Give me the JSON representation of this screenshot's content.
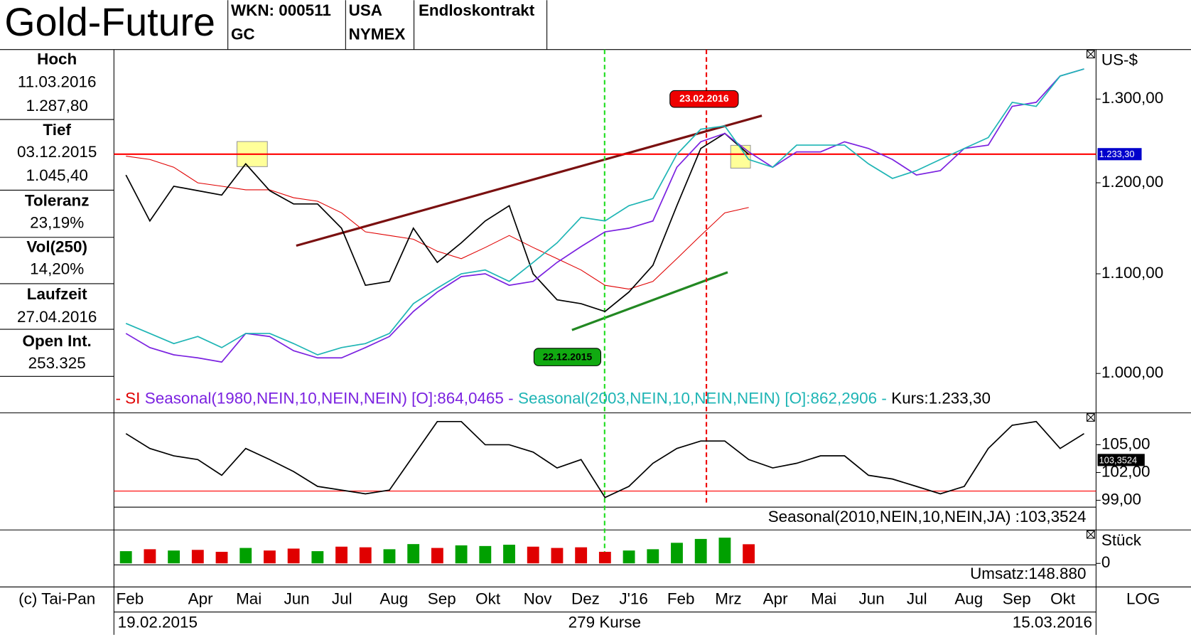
{
  "header": {
    "title": "Gold-Future",
    "wkn": "WKN: 000511",
    "symbol": "GC",
    "country": "USA",
    "exchange": "NYMEX",
    "contract": "Endloskontrakt"
  },
  "sidebar": [
    {
      "label": "Hoch",
      "lines": [
        "11.03.2016",
        "1.287,80"
      ]
    },
    {
      "label": "Tief",
      "lines": [
        "03.12.2015",
        "1.045,40"
      ]
    },
    {
      "label": "Toleranz",
      "lines": [
        "23,19%"
      ]
    },
    {
      "label": "Vol(250)",
      "lines": [
        "14,20%"
      ]
    },
    {
      "label": "Laufzeit",
      "lines": [
        "27.04.2016"
      ]
    },
    {
      "label": "Open Int.",
      "lines": [
        "253.325"
      ]
    }
  ],
  "footer": {
    "copyright": "(c) Tai-Pan",
    "scale": "LOG",
    "start": "19.02.2015",
    "count": "279 Kurse",
    "end": "15.03.2016"
  },
  "chart_data": [
    {
      "type": "line",
      "y_label": "US-$",
      "log_scale": true,
      "categories": [
        "Feb",
        null,
        null,
        "Apr",
        null,
        "Mai",
        null,
        "Jun",
        null,
        "Jul",
        null,
        "Aug",
        null,
        "Sep",
        null,
        "Okt",
        null,
        "Nov",
        null,
        "Dez",
        null,
        "J'16",
        null,
        "Feb",
        null,
        "Mrz",
        null,
        "Apr",
        null,
        "Mai",
        null,
        "Jun",
        null,
        "Jul",
        null,
        "Aug",
        null,
        "Sep",
        null,
        "Okt",
        null
      ],
      "ylim": [
        963,
        1363
      ],
      "yticks": [
        {
          "value": 1000,
          "label": "1.000,00"
        },
        {
          "value": 1100,
          "label": "1.100,00"
        },
        {
          "value": 1200,
          "label": "1.200,00"
        },
        {
          "value": 1300,
          "label": "1.300,00"
        }
      ],
      "series": [
        {
          "name": "- SI",
          "color": "#e00000",
          "values": [
            1231,
            1227,
            1218,
            1200,
            1196,
            1192,
            1192,
            1183,
            1179,
            1166,
            1145,
            1141,
            1137,
            1124,
            1116,
            1128,
            1141,
            1128,
            1116,
            1104,
            1088,
            1084,
            1092,
            1116,
            1141,
            1166,
            1172,
            null,
            null,
            null,
            null,
            null,
            null,
            null,
            null,
            null,
            null,
            null,
            null,
            null,
            null
          ]
        },
        {
          "color": "#000000",
          "values": [
            1209,
            1157,
            1196,
            1191,
            1186,
            1222,
            1191,
            1176,
            1176,
            1149,
            1088,
            1092,
            1149,
            1112,
            1133,
            1157,
            1174,
            1100,
            1073,
            1069,
            1061,
            1081,
            1109,
            1174,
            1240,
            1258,
            1233,
            null,
            null,
            null,
            null,
            null,
            null,
            null,
            null,
            null,
            null,
            null,
            null,
            null,
            null
          ]
        },
        {
          "name": "Seasonal(1980,NEIN,10,NEIN,NEIN) [O]:864,0465 -",
          "color": "#7b22e0",
          "values": [
            1039,
            1025,
            1018,
            1015,
            1011,
            1039,
            1036,
            1022,
            1015,
            1015,
            1025,
            1036,
            1061,
            1081,
            1097,
            1100,
            1088,
            1092,
            1112,
            1129,
            1145,
            1149,
            1157,
            1218,
            1248,
            1258,
            1236,
            1218,
            1236,
            1236,
            1248,
            1240,
            1227,
            1209,
            1214,
            1240,
            1244,
            1291,
            1296,
            1329,
            1338
          ]
        },
        {
          "name": "Seasonal(2003,NEIN,10,NEIN,NEIN) [O]:862,2906 -",
          "color": "#1fb5b5",
          "values": [
            1049,
            1039,
            1029,
            1036,
            1025,
            1039,
            1039,
            1029,
            1018,
            1025,
            1029,
            1039,
            1069,
            1085,
            1100,
            1104,
            1092,
            1112,
            1133,
            1161,
            1157,
            1174,
            1182,
            1233,
            1263,
            1267,
            1227,
            1218,
            1244,
            1244,
            1244,
            1222,
            1205,
            1214,
            1227,
            1240,
            1253,
            1296,
            1291,
            1329,
            1338
          ]
        }
      ],
      "reference_line": {
        "name": "Kurs:1.233,30",
        "value": 1233.3,
        "label": "1.233,30",
        "color": "#ff0000",
        "box_color": "#0000cc"
      },
      "annotations": [
        {
          "text": "22.12.2015",
          "color": "#00aa00"
        },
        {
          "text": "23.02.2016",
          "color": "#ee0000"
        }
      ]
    },
    {
      "type": "line",
      "ylim": [
        98.26,
        108.44
      ],
      "yticks": [
        {
          "value": 99,
          "label": "99,00"
        },
        {
          "value": 102,
          "label": "102,00"
        },
        {
          "value": 105,
          "label": "105,00"
        }
      ],
      "series": [
        {
          "name": "Seasonal(2010,NEIN,10,NEIN,JA) :103,3524",
          "color": "#000000",
          "values": [
            106.2,
            104.6,
            103.8,
            103.4,
            101.7,
            104.6,
            103.4,
            102.1,
            100.5,
            100.1,
            99.7,
            100.1,
            103.8,
            107.5,
            107.5,
            105.0,
            105.0,
            104.2,
            102.5,
            103.4,
            99.3,
            100.5,
            103.0,
            104.6,
            105.4,
            105.4,
            103.4,
            102.5,
            103.0,
            103.8,
            103.8,
            101.7,
            101.3,
            100.5,
            99.7,
            100.5,
            104.6,
            107.1,
            107.5,
            104.6,
            106.2
          ]
        }
      ],
      "reference_line": {
        "value": 100,
        "color": "#ff0000"
      },
      "last_value": {
        "value": 103.3524,
        "label": "103,3524"
      }
    },
    {
      "type": "bar",
      "y_label": "Stück",
      "ylim": [
        0,
        260000
      ],
      "yticks": [
        0
      ],
      "up_color": "#00a000",
      "down_color": "#e00000",
      "series": [
        {
          "name": "Umsatz:148.880",
          "color": "#e00000",
          "values": [
            95000,
            110000,
            100000,
            105000,
            90000,
            120000,
            100000,
            115000,
            95000,
            130000,
            125000,
            110000,
            150000,
            120000,
            140000,
            135000,
            145000,
            130000,
            120000,
            125000,
            90000,
            100000,
            110000,
            160000,
            190000,
            200000,
            148880,
            null,
            null,
            null,
            null,
            null,
            null,
            null,
            null,
            null,
            null,
            null,
            null,
            null,
            null
          ]
        }
      ]
    }
  ]
}
